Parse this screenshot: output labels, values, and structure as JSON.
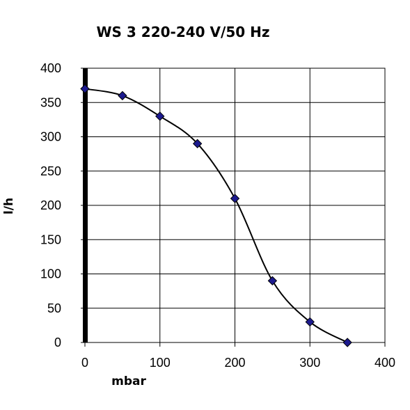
{
  "chart_data": {
    "type": "line",
    "title": "WS 3 220-240 V/50 Hz",
    "xlabel": "mbar",
    "ylabel": "l/h",
    "xlim": [
      0,
      400
    ],
    "ylim": [
      0,
      400
    ],
    "xticks": [
      "0",
      "100",
      "200",
      "300",
      "400"
    ],
    "yticks": [
      "0",
      "50",
      "100",
      "150",
      "200",
      "250",
      "300",
      "350",
      "400"
    ],
    "grid": true,
    "series": [
      {
        "x": [
          0,
          50,
          100,
          150,
          200,
          250,
          300,
          350
        ],
        "y": [
          370,
          360,
          330,
          290,
          210,
          90,
          30,
          0
        ]
      }
    ],
    "colors": {
      "line": "#000000",
      "marker": "#1c1a8e",
      "grid": "#000000"
    }
  }
}
